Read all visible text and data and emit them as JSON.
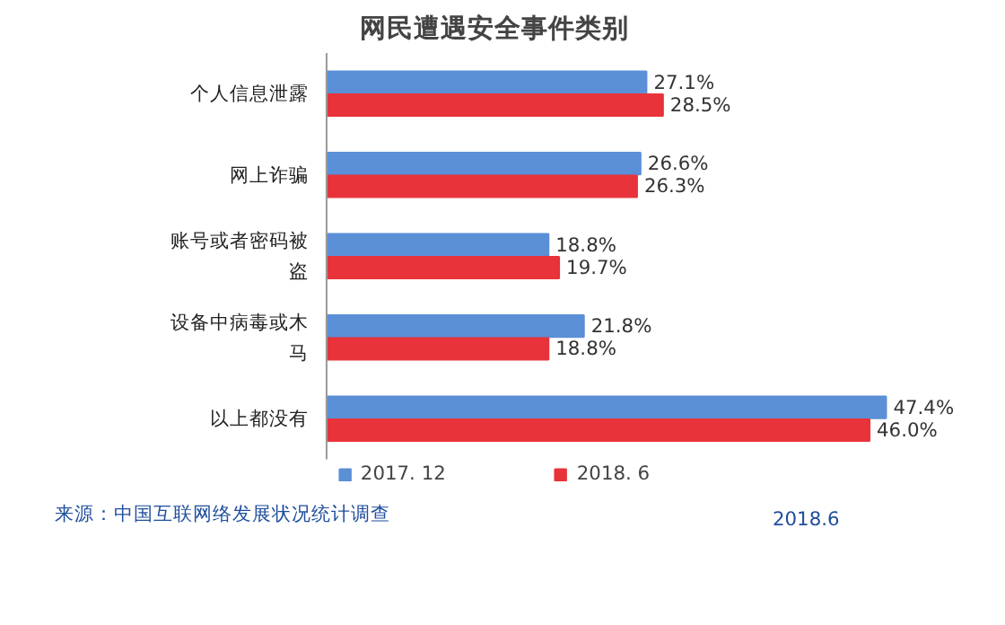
{
  "chart_data": {
    "type": "bar",
    "orientation": "horizontal",
    "title": "网民遭遇安全事件类别",
    "categories": [
      "个人信息泄露",
      "网上诈骗",
      "账号或者密码被盗",
      "设备中病毒或木马",
      "以上都没有"
    ],
    "series": [
      {
        "name": "2017. 12",
        "color": "#5b8fd6",
        "values": [
          27.1,
          26.6,
          18.8,
          21.8,
          47.4
        ],
        "value_labels": [
          "27.1%",
          "26.6%",
          "18.8%",
          "21.8%",
          "47.4%"
        ]
      },
      {
        "name": "2018. 6",
        "color": "#e8333a",
        "values": [
          28.5,
          26.3,
          19.7,
          18.8,
          46.0
        ],
        "value_labels": [
          "28.5%",
          "26.3%",
          "19.7%",
          "18.8%",
          "46.0%"
        ]
      }
    ],
    "legend": "bottom",
    "tick_labels": "y",
    "annotations": [
      "来源：中国互联网络发展状况统计调查",
      "2018.6"
    ]
  }
}
